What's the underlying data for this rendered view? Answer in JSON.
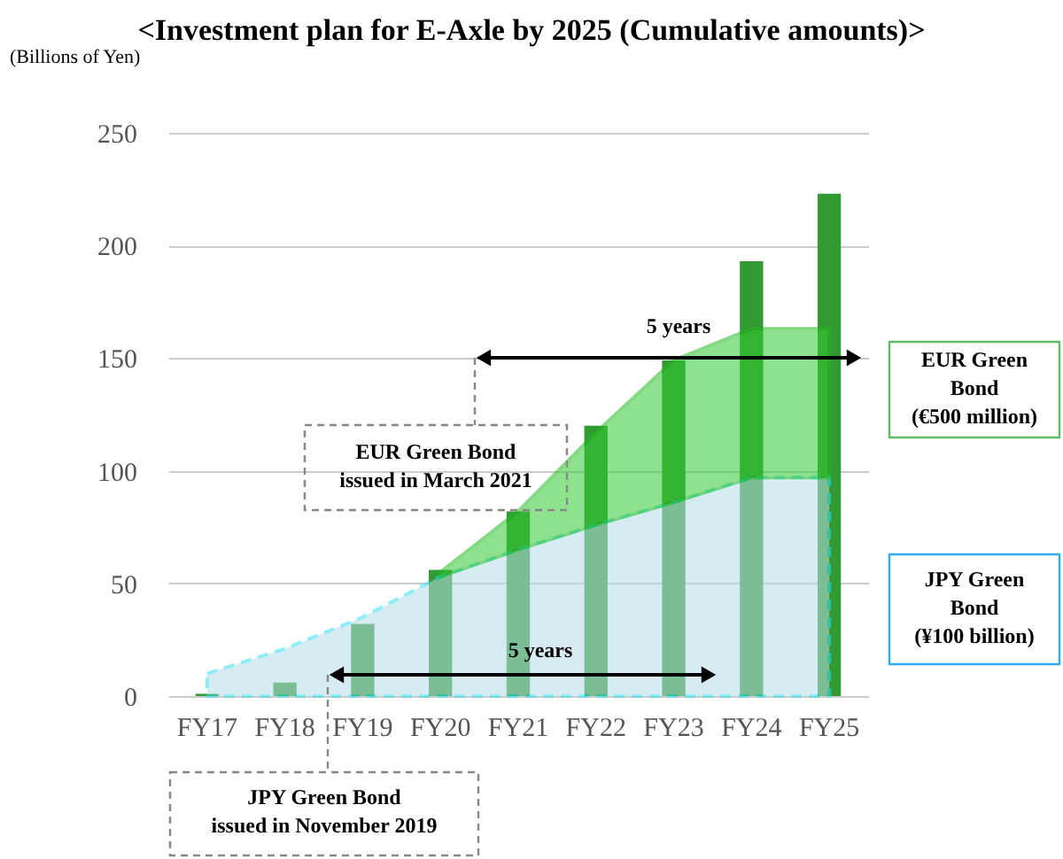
{
  "chart_data": {
    "type": "bar",
    "title": "<Investment plan for E-Axle by 2025 (Cumulative amounts)>",
    "ylabel": "(Billions of Yen)",
    "categories": [
      "FY17",
      "FY18",
      "FY19",
      "FY20",
      "FY21",
      "FY22",
      "FY23",
      "FY24",
      "FY25"
    ],
    "series": [
      {
        "color": "#339933",
        "values": [
          1,
          6,
          32,
          56,
          82,
          120,
          149,
          193,
          223
        ]
      },
      {
        "type": "area",
        "name": "JPY Green\nBond\n(¥100 billion)",
        "color": "#b7dde8",
        "values": [
          10,
          21,
          35,
          53,
          65,
          76,
          86,
          97,
          97
        ]
      },
      {
        "type": "area",
        "name": "EUR Green\nBond\n(€500 million)",
        "color": "#33cc33",
        "values": [
          null,
          null,
          null,
          55,
          82,
          117,
          149,
          163,
          163
        ]
      }
    ],
    "ylim": [
      0,
      250
    ],
    "yticks": [
      0,
      50,
      100,
      150,
      200,
      250
    ],
    "grid": "y",
    "annotations": [
      "EUR Green Bond\nissued in March 2021",
      "JPY Green Bond\nissued in November 2019",
      "5 years",
      "5 years"
    ]
  }
}
